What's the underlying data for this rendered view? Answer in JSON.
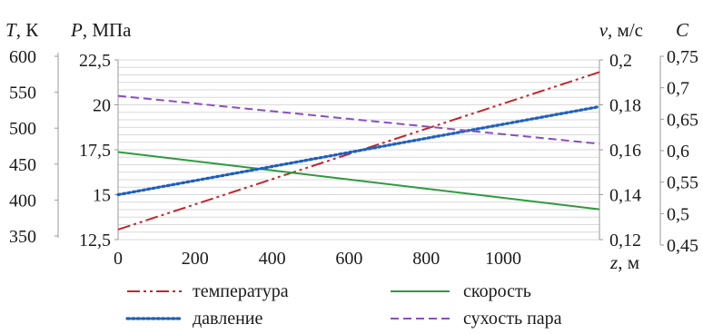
{
  "chart_data": {
    "type": "line",
    "axes": {
      "temperature": {
        "label_symbol": "T",
        "label_unit": ", К",
        "ylim": [
          350,
          600
        ],
        "ticks": [
          "350",
          "400",
          "450",
          "500",
          "550",
          "600"
        ],
        "tick_values": [
          350,
          400,
          450,
          500,
          550,
          600
        ]
      },
      "pressure": {
        "label_symbol": "P",
        "label_unit": ", МПа",
        "ylim": [
          12.5,
          22.5
        ],
        "ticks": [
          "12,5",
          "15",
          "17,5",
          "20",
          "22,5"
        ],
        "tick_values": [
          12.5,
          15,
          17.5,
          20,
          22.5
        ]
      },
      "velocity": {
        "label_symbol": "v",
        "label_unit": ", м/с",
        "ylim": [
          0.12,
          0.2
        ],
        "ticks": [
          "0,12",
          "0,14",
          "0,16",
          "0,18",
          "0,2"
        ],
        "tick_values": [
          0.12,
          0.14,
          0.16,
          0.18,
          0.2
        ]
      },
      "dryness": {
        "label_symbol": "C",
        "label_unit": "",
        "ylim": [
          0.45,
          0.75
        ],
        "ticks": [
          "0,45",
          "0,5",
          "0,55",
          "0,6",
          "0,65",
          "0,7",
          "0,75"
        ],
        "tick_values": [
          0.45,
          0.5,
          0.55,
          0.6,
          0.65,
          0.7,
          0.75
        ]
      },
      "x": {
        "label_symbol": "z",
        "label_unit": ", м",
        "xlim": [
          0,
          1250
        ],
        "ticks": [
          "0",
          "200",
          "400",
          "600",
          "800",
          "1000"
        ],
        "tick_values": [
          0,
          200,
          400,
          600,
          800,
          1000
        ]
      }
    },
    "series": [
      {
        "name": "температура",
        "axis": "temperature",
        "color": "#c0272d",
        "dash": "dash-dot-dot",
        "x": [
          0,
          1250
        ],
        "y": [
          364,
          583
        ]
      },
      {
        "name": "скорость",
        "axis": "velocity",
        "color": "#2e9a3e",
        "dash": "solid",
        "x": [
          0,
          1250
        ],
        "y": [
          0.159,
          0.1335
        ]
      },
      {
        "name": "давление",
        "axis": "pressure",
        "color": "#1f5fbf",
        "dash": "dotted",
        "x": [
          0,
          1250
        ],
        "y": [
          15,
          19.9
        ]
      },
      {
        "name": "сухость пара",
        "axis": "dryness",
        "color": "#8a4fbf",
        "dash": "dashed",
        "x": [
          0,
          1250
        ],
        "y": [
          0.69,
          0.61
        ]
      }
    ],
    "legend": {
      "placement": "bottom",
      "order": [
        "температура",
        "скорость",
        "давление",
        "сухость пара"
      ]
    },
    "grid": true
  }
}
